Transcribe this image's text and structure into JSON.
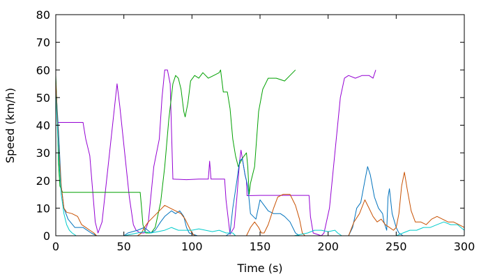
{
  "chart_data": {
    "type": "line",
    "title": "",
    "xlabel": "Time (s)",
    "ylabel": "Speed (km/h)",
    "xlim": [
      0,
      300
    ],
    "ylim": [
      0,
      80
    ],
    "xticks": [
      0,
      50,
      100,
      150,
      200,
      250,
      300
    ],
    "yticks": [
      0,
      10,
      20,
      30,
      40,
      50,
      60,
      70,
      80
    ],
    "grid": false,
    "legend": "none",
    "series": [
      {
        "color": "#9400d3",
        "points": [
          [
            0,
            57
          ],
          [
            1,
            41
          ],
          [
            20,
            41
          ],
          [
            22,
            35
          ],
          [
            25,
            29
          ],
          [
            29,
            5
          ],
          [
            31,
            1
          ],
          [
            34,
            5
          ],
          [
            45,
            55
          ],
          [
            47,
            47
          ],
          [
            54,
            14
          ],
          [
            57,
            4
          ],
          [
            59,
            2
          ],
          [
            62,
            1
          ],
          [
            65,
            1
          ],
          [
            68,
            5
          ],
          [
            72,
            25
          ],
          [
            76,
            35
          ],
          [
            78,
            50
          ],
          [
            80,
            60
          ],
          [
            82,
            60
          ],
          [
            84,
            55
          ],
          [
            86,
            20.5
          ],
          [
            96,
            20.3
          ],
          [
            105,
            20.5
          ],
          [
            112,
            20.5
          ],
          [
            113,
            27
          ],
          [
            114,
            20.5
          ],
          [
            121,
            20.5
          ],
          [
            124,
            20.5
          ],
          [
            125,
            13
          ],
          [
            128,
            0.5
          ],
          [
            131,
            3
          ],
          [
            133,
            14
          ],
          [
            135,
            27
          ],
          [
            136,
            31
          ],
          [
            137,
            28
          ],
          [
            139,
            22
          ],
          [
            140,
            20
          ],
          [
            140.5,
            14.5
          ],
          [
            150,
            14.6
          ],
          [
            160,
            14.6
          ],
          [
            171,
            14.6
          ],
          [
            180,
            14.6
          ],
          [
            186,
            14.6
          ],
          [
            187,
            7
          ],
          [
            189,
            1
          ],
          [
            195,
            0
          ],
          [
            197,
            1
          ],
          [
            201,
            10
          ],
          [
            205,
            30
          ],
          [
            209,
            50
          ],
          [
            212,
            57
          ],
          [
            215,
            58
          ],
          [
            220,
            57
          ],
          [
            225,
            58
          ],
          [
            230,
            58
          ],
          [
            233,
            57
          ],
          [
            235,
            60
          ]
        ]
      },
      {
        "color": "#00a000",
        "points": [
          [
            0,
            58
          ],
          [
            1,
            45
          ],
          [
            2,
            26
          ],
          [
            3,
            18
          ],
          [
            5,
            15.7
          ],
          [
            20,
            15.7
          ],
          [
            40,
            15.7
          ],
          [
            55,
            15.7
          ],
          [
            62,
            15.7
          ],
          [
            63,
            10
          ],
          [
            64,
            4
          ],
          [
            66,
            1
          ],
          [
            70,
            1
          ],
          [
            73,
            3
          ],
          [
            77,
            12
          ],
          [
            80,
            25
          ],
          [
            83,
            42
          ],
          [
            86,
            55
          ],
          [
            88,
            58
          ],
          [
            90,
            57
          ],
          [
            92,
            53
          ],
          [
            94,
            45
          ],
          [
            95,
            43
          ],
          [
            97,
            48
          ],
          [
            99,
            56
          ],
          [
            102,
            58
          ],
          [
            105,
            57
          ],
          [
            108,
            59
          ],
          [
            112,
            57
          ],
          [
            116,
            58
          ],
          [
            120,
            59
          ],
          [
            121,
            60
          ],
          [
            123,
            52
          ],
          [
            126,
            52
          ],
          [
            128,
            46
          ],
          [
            130,
            35
          ],
          [
            132,
            29
          ],
          [
            134,
            25
          ],
          [
            137,
            28
          ],
          [
            140,
            30
          ],
          [
            141,
            25
          ],
          [
            142,
            15
          ],
          [
            143,
            19
          ],
          [
            146,
            25
          ],
          [
            149,
            45
          ],
          [
            152,
            53
          ],
          [
            156,
            57
          ],
          [
            162,
            57
          ],
          [
            168,
            56
          ],
          [
            172,
            58
          ],
          [
            176,
            60
          ]
        ]
      },
      {
        "color": "#0072bd",
        "points": [
          [
            0,
            55
          ],
          [
            2,
            38
          ],
          [
            4,
            18
          ],
          [
            6,
            10
          ],
          [
            9,
            6
          ],
          [
            14,
            3
          ],
          [
            20,
            3
          ],
          [
            26,
            1
          ],
          [
            30,
            0
          ],
          [
            50,
            0
          ],
          [
            53,
            1
          ],
          [
            60,
            2
          ],
          [
            65,
            3
          ],
          [
            70,
            1
          ],
          [
            73,
            2
          ],
          [
            77,
            5
          ],
          [
            80,
            7
          ],
          [
            85,
            9
          ],
          [
            88,
            8
          ],
          [
            91,
            9
          ],
          [
            94,
            7
          ],
          [
            96,
            3
          ],
          [
            98,
            1
          ],
          [
            104,
            0
          ],
          [
            125,
            0
          ],
          [
            128,
            1
          ],
          [
            130,
            10
          ],
          [
            133,
            20
          ],
          [
            135,
            27
          ],
          [
            137,
            28
          ],
          [
            139,
            22
          ],
          [
            141,
            18
          ],
          [
            143,
            8
          ],
          [
            147,
            6
          ],
          [
            150,
            13
          ],
          [
            153,
            11
          ],
          [
            156,
            9
          ],
          [
            160,
            8
          ],
          [
            165,
            8
          ],
          [
            168,
            7
          ],
          [
            172,
            5
          ],
          [
            176,
            1
          ],
          [
            179,
            0
          ],
          [
            215,
            0
          ],
          [
            218,
            3
          ],
          [
            221,
            10
          ],
          [
            224,
            12
          ],
          [
            227,
            20
          ],
          [
            229,
            25
          ],
          [
            231,
            22
          ],
          [
            234,
            14
          ],
          [
            237,
            10
          ],
          [
            240,
            8
          ],
          [
            241,
            5
          ],
          [
            243,
            2
          ],
          [
            244,
            14
          ],
          [
            245,
            17
          ],
          [
            247,
            8
          ],
          [
            250,
            3
          ],
          [
            252,
            1
          ],
          [
            255,
            0
          ]
        ]
      },
      {
        "color": "#c85000",
        "points": [
          [
            0,
            56
          ],
          [
            2,
            33
          ],
          [
            4,
            18
          ],
          [
            6,
            10
          ],
          [
            8,
            8.5
          ],
          [
            12,
            8
          ],
          [
            16,
            7
          ],
          [
            19,
            4
          ],
          [
            22,
            3
          ],
          [
            25,
            2
          ],
          [
            28,
            1
          ],
          [
            30,
            0
          ],
          [
            60,
            0
          ],
          [
            63,
            1
          ],
          [
            65,
            3
          ],
          [
            68,
            5
          ],
          [
            72,
            7
          ],
          [
            76,
            9
          ],
          [
            80,
            11
          ],
          [
            84,
            10
          ],
          [
            88,
            9
          ],
          [
            92,
            8
          ],
          [
            95,
            6
          ],
          [
            98,
            3
          ],
          [
            100,
            1
          ],
          [
            102,
            0
          ],
          [
            140,
            0
          ],
          [
            143,
            3
          ],
          [
            146,
            5
          ],
          [
            149,
            3
          ],
          [
            151,
            1
          ],
          [
            153,
            1
          ],
          [
            156,
            4
          ],
          [
            160,
            10
          ],
          [
            163,
            14
          ],
          [
            167,
            15
          ],
          [
            172,
            15
          ],
          [
            176,
            11
          ],
          [
            179,
            6
          ],
          [
            181,
            1
          ],
          [
            183,
            0
          ],
          [
            215,
            0
          ],
          [
            219,
            5
          ],
          [
            223,
            8
          ],
          [
            227,
            13
          ],
          [
            230,
            10
          ],
          [
            233,
            7
          ],
          [
            236,
            5
          ],
          [
            239,
            6
          ],
          [
            242,
            4
          ],
          [
            245,
            3
          ],
          [
            248,
            2
          ],
          [
            250,
            3
          ],
          [
            252,
            8
          ],
          [
            254,
            18
          ],
          [
            256,
            23
          ],
          [
            258,
            17
          ],
          [
            261,
            9
          ],
          [
            264,
            5
          ],
          [
            268,
            5
          ],
          [
            272,
            4
          ],
          [
            276,
            6
          ],
          [
            280,
            7
          ],
          [
            284,
            6
          ],
          [
            288,
            5
          ],
          [
            292,
            5
          ],
          [
            296,
            4
          ],
          [
            300,
            3
          ]
        ]
      },
      {
        "color": "#00cccc",
        "points": [
          [
            0,
            52
          ],
          [
            2,
            30
          ],
          [
            4,
            15
          ],
          [
            6,
            8
          ],
          [
            8,
            4
          ],
          [
            10,
            2
          ],
          [
            12,
            1
          ],
          [
            15,
            0
          ],
          [
            50,
            0
          ],
          [
            55,
            0.5
          ],
          [
            60,
            1
          ],
          [
            65,
            1.5
          ],
          [
            70,
            1
          ],
          [
            75,
            1.5
          ],
          [
            80,
            2
          ],
          [
            85,
            3
          ],
          [
            90,
            2
          ],
          [
            95,
            2
          ],
          [
            100,
            2
          ],
          [
            105,
            2.5
          ],
          [
            110,
            2
          ],
          [
            115,
            1.5
          ],
          [
            120,
            2
          ],
          [
            125,
            1
          ],
          [
            130,
            1
          ],
          [
            132,
            0
          ],
          [
            175,
            0
          ],
          [
            185,
            1
          ],
          [
            190,
            2
          ],
          [
            195,
            2
          ],
          [
            200,
            1.5
          ],
          [
            205,
            2
          ],
          [
            207,
            1
          ],
          [
            210,
            0
          ],
          [
            250,
            0
          ],
          [
            255,
            1
          ],
          [
            260,
            2
          ],
          [
            265,
            2
          ],
          [
            270,
            3
          ],
          [
            275,
            3
          ],
          [
            280,
            4
          ],
          [
            285,
            5
          ],
          [
            290,
            4
          ],
          [
            295,
            4
          ],
          [
            300,
            2
          ]
        ]
      }
    ]
  }
}
